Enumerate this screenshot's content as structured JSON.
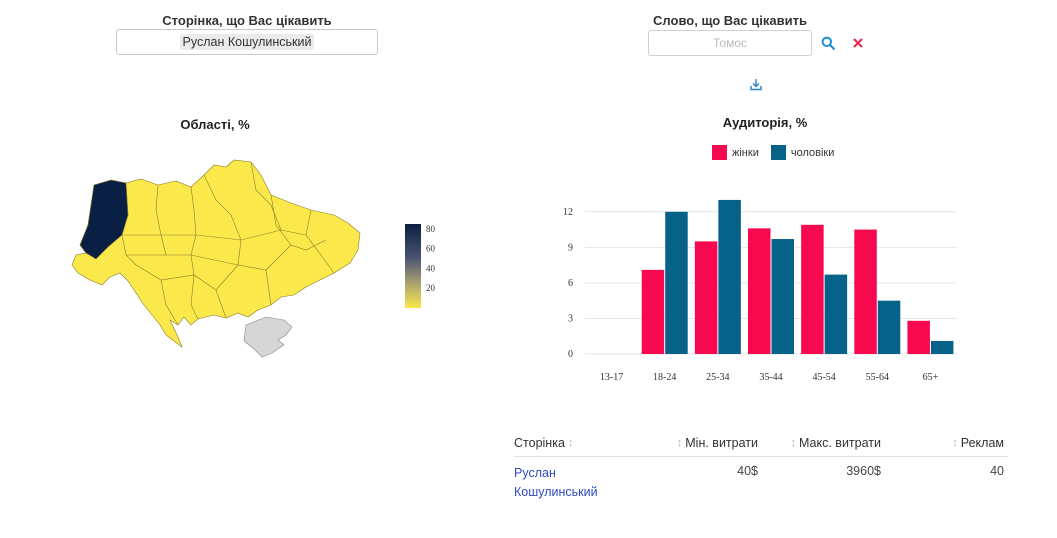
{
  "page_picker": {
    "label": "Сторінка, що Вас цікавить",
    "selected": "Руслан Кошулинський"
  },
  "word_picker": {
    "label": "Слово, що Вас цікавить",
    "placeholder": "Томос"
  },
  "icons": {
    "search": "search-icon",
    "clear": "close-icon",
    "download": "download-icon"
  },
  "colors": {
    "women": "#f7094f",
    "men": "#07628a",
    "map_high": "#0a1f44",
    "map_low": "#fbe84a",
    "crimea": "#d6d6d6",
    "search": "#1d8fd6",
    "clear": "#e0304e"
  },
  "map": {
    "title": "Області, %",
    "colorbar": {
      "ticks": [
        "80",
        "60",
        "40",
        "20"
      ],
      "min": 0,
      "max": 85
    },
    "regions": [
      {
        "name": "Lviv",
        "value": 80
      }
    ]
  },
  "audience": {
    "title": "Аудиторія, %",
    "legend": {
      "women": "жінки",
      "men": "чоловіки"
    }
  },
  "chart_data": {
    "type": "bar",
    "title": "Аудиторія, %",
    "categories": [
      "13-17",
      "18-24",
      "25-34",
      "35-44",
      "45-54",
      "55-64",
      "65+"
    ],
    "series": [
      {
        "name": "жінки",
        "values": [
          0,
          7.1,
          9.5,
          10.6,
          10.9,
          10.5,
          2.8
        ]
      },
      {
        "name": "чоловіки",
        "values": [
          0,
          12.0,
          13.0,
          9.7,
          6.7,
          4.5,
          1.1
        ]
      }
    ],
    "yticks": [
      "0",
      "3",
      "6",
      "9",
      "12"
    ],
    "ylim": [
      0,
      13.5
    ],
    "grid": true,
    "legend": "top"
  },
  "table": {
    "headers": [
      "Сторінка",
      "Мін. витрати",
      "Макс. витрати",
      "Реклам"
    ],
    "sort_glyph": "↕",
    "rows": [
      {
        "page_line1": "Руслан",
        "page_line2": "Кошулинський",
        "min": "40$",
        "max": "3960$",
        "ads": "40"
      }
    ]
  }
}
